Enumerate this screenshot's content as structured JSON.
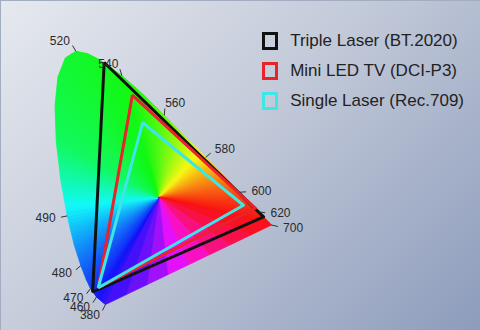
{
  "chart_data": {
    "type": "chromaticity",
    "tick_labels": false,
    "legend": "top-right",
    "xlim": [
      -0.18,
      1.44
    ],
    "ylim": [
      -0.08,
      1.0
    ],
    "locus": {
      "x": [
        0.1741,
        0.144,
        0.1241,
        0.1096,
        0.0913,
        0.0687,
        0.0454,
        0.0235,
        0.0082,
        0.0039,
        0.0139,
        0.0389,
        0.0743,
        0.1142,
        0.1547,
        0.2296,
        0.3016,
        0.3731,
        0.4441,
        0.5125,
        0.5752,
        0.627,
        0.6658,
        0.6915,
        0.7347
      ],
      "y": [
        0.005,
        0.0297,
        0.0578,
        0.0868,
        0.1327,
        0.2007,
        0.295,
        0.4127,
        0.5384,
        0.6548,
        0.7502,
        0.812,
        0.8338,
        0.8262,
        0.8059,
        0.7543,
        0.6923,
        0.6245,
        0.5547,
        0.4866,
        0.4242,
        0.3725,
        0.334,
        0.3083,
        0.2653
      ],
      "labels": [
        380,
        460,
        470,
        null,
        480,
        null,
        490,
        null,
        null,
        null,
        null,
        null,
        520,
        null,
        null,
        540,
        null,
        560,
        null,
        580,
        null,
        600,
        null,
        620,
        700
      ]
    },
    "series": [
      {
        "name": "Triple Laser (BT.2020)",
        "color": "#111111",
        "x": [
          0.708,
          0.17,
          0.131
        ],
        "y": [
          0.292,
          0.797,
          0.046
        ]
      },
      {
        "name": "Mini LED TV (DCI-P3)",
        "color": "#e8232a",
        "x": [
          0.68,
          0.265,
          0.15
        ],
        "y": [
          0.32,
          0.69,
          0.06
        ]
      },
      {
        "name": "Single Laser (Rec.709)",
        "color": "#3fe6e6",
        "x": [
          0.64,
          0.3,
          0.15
        ],
        "y": [
          0.33,
          0.6,
          0.06
        ]
      }
    ]
  }
}
